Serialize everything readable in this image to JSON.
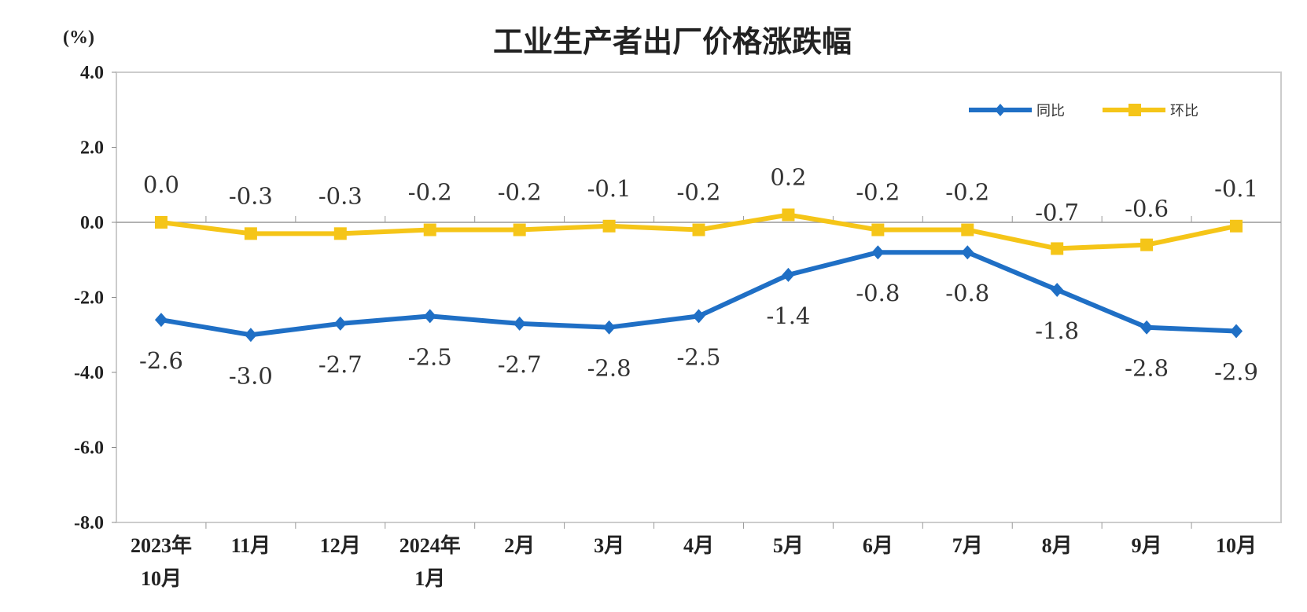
{
  "chart_data": {
    "type": "line",
    "title": "工业生产者出厂价格涨跌幅",
    "ylabel": "(%)",
    "ylim": [
      -8.0,
      4.0
    ],
    "yticks": [
      "4.0",
      "2.0",
      "0.0",
      "-2.0",
      "-4.0",
      "-6.0",
      "-8.0"
    ],
    "ytick_values": [
      4,
      2,
      0,
      -2,
      -4,
      -6,
      -8
    ],
    "categories": [
      [
        "2023年",
        "10月"
      ],
      [
        "11月"
      ],
      [
        "12月"
      ],
      [
        "2024年",
        "1月"
      ],
      [
        "2月"
      ],
      [
        "3月"
      ],
      [
        "4月"
      ],
      [
        "5月"
      ],
      [
        "6月"
      ],
      [
        "7月"
      ],
      [
        "8月"
      ],
      [
        "9月"
      ],
      [
        "10月"
      ]
    ],
    "legend_position": "top-right",
    "series": [
      {
        "name": "同比",
        "color": "#1f6fc5",
        "marker": "diamond",
        "values": [
          -2.6,
          -3.0,
          -2.7,
          -2.5,
          -2.7,
          -2.8,
          -2.5,
          -1.4,
          -0.8,
          -0.8,
          -1.8,
          -2.8,
          -2.9
        ],
        "labels": [
          "-2.6",
          "-3.0",
          "-2.7",
          "-2.5",
          "-2.7",
          "-2.8",
          "-2.5",
          "-1.4",
          "-0.8",
          "-0.8",
          "-1.8",
          "-2.8",
          "-2.9"
        ]
      },
      {
        "name": "环比",
        "color": "#f5c518",
        "marker": "square",
        "values": [
          0.0,
          -0.3,
          -0.3,
          -0.2,
          -0.2,
          -0.1,
          -0.2,
          0.2,
          -0.2,
          -0.2,
          -0.7,
          -0.6,
          -0.1
        ],
        "labels": [
          "0.0",
          "-0.3",
          "-0.3",
          "-0.2",
          "-0.2",
          "-0.1",
          "-0.2",
          "0.2",
          "-0.2",
          "-0.2",
          "-0.7",
          "-0.6",
          "-0.1"
        ]
      }
    ]
  }
}
